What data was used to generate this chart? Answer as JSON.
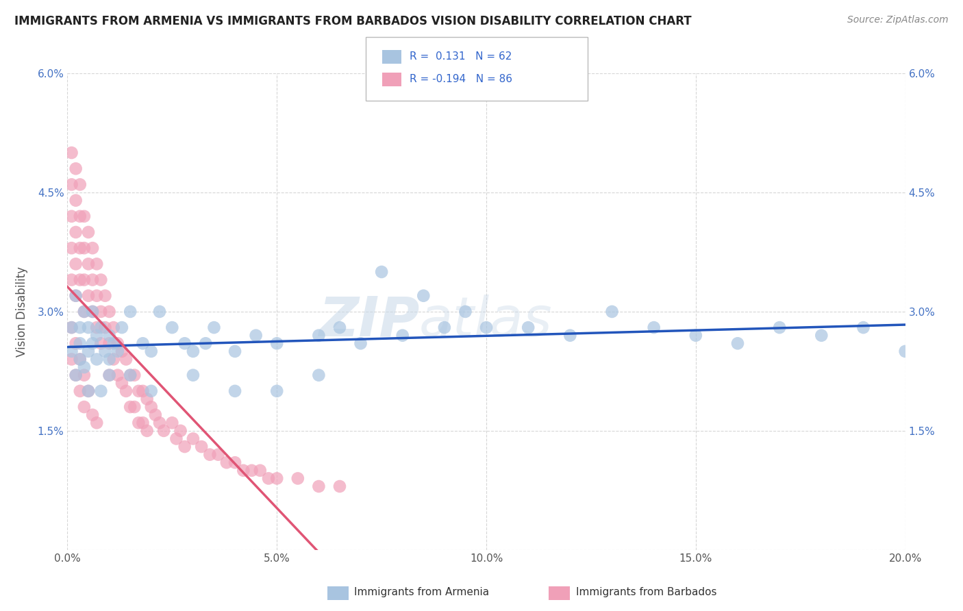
{
  "title": "IMMIGRANTS FROM ARMENIA VS IMMIGRANTS FROM BARBADOS VISION DISABILITY CORRELATION CHART",
  "source": "Source: ZipAtlas.com",
  "ylabel": "Vision Disability",
  "xlim": [
    0,
    0.2
  ],
  "ylim": [
    0,
    0.06
  ],
  "xticks": [
    0.0,
    0.05,
    0.1,
    0.15,
    0.2
  ],
  "xtick_labels": [
    "0.0%",
    "5.0%",
    "10.0%",
    "15.0%",
    "20.0%"
  ],
  "yticks": [
    0.0,
    0.015,
    0.03,
    0.045,
    0.06
  ],
  "ytick_labels": [
    "",
    "1.5%",
    "3.0%",
    "4.5%",
    "6.0%"
  ],
  "armenia_R": 0.131,
  "armenia_N": 62,
  "barbados_R": -0.194,
  "barbados_N": 86,
  "armenia_color": "#a8c4e0",
  "barbados_color": "#f0a0b8",
  "armenia_line_color": "#2255bb",
  "barbados_line_color": "#e05575",
  "watermark_zip": "ZIP",
  "watermark_atlas": "atlas",
  "background_color": "#ffffff",
  "grid_color": "#cccccc",
  "armenia_x": [
    0.001,
    0.001,
    0.002,
    0.002,
    0.003,
    0.003,
    0.003,
    0.004,
    0.004,
    0.005,
    0.005,
    0.006,
    0.006,
    0.007,
    0.007,
    0.008,
    0.009,
    0.01,
    0.01,
    0.011,
    0.012,
    0.013,
    0.015,
    0.018,
    0.02,
    0.022,
    0.025,
    0.028,
    0.03,
    0.033,
    0.035,
    0.04,
    0.045,
    0.05,
    0.06,
    0.065,
    0.07,
    0.08,
    0.09,
    0.095,
    0.1,
    0.11,
    0.12,
    0.13,
    0.14,
    0.15,
    0.16,
    0.17,
    0.18,
    0.19,
    0.2,
    0.075,
    0.085,
    0.05,
    0.06,
    0.04,
    0.03,
    0.02,
    0.015,
    0.01,
    0.008,
    0.005
  ],
  "armenia_y": [
    0.028,
    0.025,
    0.032,
    0.022,
    0.026,
    0.028,
    0.024,
    0.03,
    0.023,
    0.028,
    0.025,
    0.026,
    0.03,
    0.027,
    0.024,
    0.028,
    0.025,
    0.027,
    0.024,
    0.026,
    0.025,
    0.028,
    0.03,
    0.026,
    0.025,
    0.03,
    0.028,
    0.026,
    0.025,
    0.026,
    0.028,
    0.025,
    0.027,
    0.026,
    0.027,
    0.028,
    0.026,
    0.027,
    0.028,
    0.03,
    0.028,
    0.028,
    0.027,
    0.03,
    0.028,
    0.027,
    0.026,
    0.028,
    0.027,
    0.028,
    0.025,
    0.035,
    0.032,
    0.02,
    0.022,
    0.02,
    0.022,
    0.02,
    0.022,
    0.022,
    0.02,
    0.02
  ],
  "barbados_x": [
    0.001,
    0.001,
    0.001,
    0.001,
    0.001,
    0.002,
    0.002,
    0.002,
    0.002,
    0.002,
    0.003,
    0.003,
    0.003,
    0.003,
    0.004,
    0.004,
    0.004,
    0.004,
    0.005,
    0.005,
    0.005,
    0.006,
    0.006,
    0.006,
    0.007,
    0.007,
    0.007,
    0.008,
    0.008,
    0.008,
    0.009,
    0.009,
    0.01,
    0.01,
    0.01,
    0.011,
    0.011,
    0.012,
    0.012,
    0.013,
    0.013,
    0.014,
    0.014,
    0.015,
    0.015,
    0.016,
    0.016,
    0.017,
    0.017,
    0.018,
    0.018,
    0.019,
    0.019,
    0.02,
    0.021,
    0.022,
    0.023,
    0.025,
    0.026,
    0.027,
    0.028,
    0.03,
    0.032,
    0.034,
    0.036,
    0.038,
    0.04,
    0.042,
    0.044,
    0.046,
    0.048,
    0.05,
    0.055,
    0.06,
    0.065,
    0.001,
    0.001,
    0.002,
    0.002,
    0.003,
    0.003,
    0.004,
    0.004,
    0.005,
    0.006,
    0.007
  ],
  "barbados_y": [
    0.05,
    0.046,
    0.042,
    0.038,
    0.034,
    0.048,
    0.044,
    0.04,
    0.036,
    0.032,
    0.046,
    0.042,
    0.038,
    0.034,
    0.042,
    0.038,
    0.034,
    0.03,
    0.04,
    0.036,
    0.032,
    0.038,
    0.034,
    0.03,
    0.036,
    0.032,
    0.028,
    0.034,
    0.03,
    0.026,
    0.032,
    0.028,
    0.03,
    0.026,
    0.022,
    0.028,
    0.024,
    0.026,
    0.022,
    0.025,
    0.021,
    0.024,
    0.02,
    0.022,
    0.018,
    0.022,
    0.018,
    0.02,
    0.016,
    0.02,
    0.016,
    0.019,
    0.015,
    0.018,
    0.017,
    0.016,
    0.015,
    0.016,
    0.014,
    0.015,
    0.013,
    0.014,
    0.013,
    0.012,
    0.012,
    0.011,
    0.011,
    0.01,
    0.01,
    0.01,
    0.009,
    0.009,
    0.009,
    0.008,
    0.008,
    0.028,
    0.024,
    0.026,
    0.022,
    0.024,
    0.02,
    0.022,
    0.018,
    0.02,
    0.017,
    0.016
  ]
}
